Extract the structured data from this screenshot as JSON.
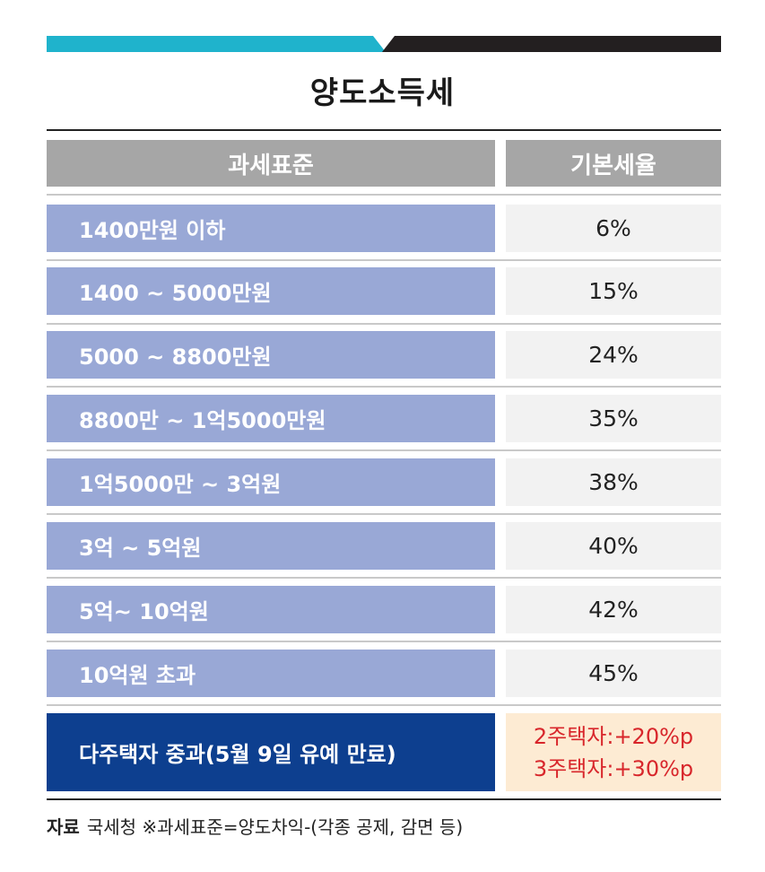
{
  "colors": {
    "accent_teal": "#1fb3cc",
    "accent_dark": "#231f20",
    "header_gray": "#a6a6a6",
    "row_blue": "#99a8d6",
    "special_navy": "#0d3f8f",
    "special_bg": "#fdebd3",
    "special_text": "#d8262b"
  },
  "title": "양도소득세",
  "table": {
    "headers": {
      "base": "과세표준",
      "rate": "기본세율"
    },
    "rows": [
      {
        "base": "1400만원 이하",
        "rate": "6%"
      },
      {
        "base": "1400 ~ 5000만원",
        "rate": "15%"
      },
      {
        "base": "5000 ~ 8800만원",
        "rate": "24%"
      },
      {
        "base": "8800만 ~ 1억5000만원",
        "rate": "35%"
      },
      {
        "base": "1억5000만 ~ 3억원",
        "rate": "38%"
      },
      {
        "base": "3억 ~ 5억원",
        "rate": "40%"
      },
      {
        "base": "5억~ 10억원",
        "rate": "42%"
      },
      {
        "base": "10억원 초과",
        "rate": "45%"
      }
    ],
    "special": {
      "label": "다주택자 중과(5월 9일 유예 만료)",
      "line1": "2주택자:+20%p",
      "line2": "3주택자:+30%p"
    }
  },
  "source": {
    "label": "자료",
    "text": "국세청 ※과세표준=양도차익-(각종 공제, 감면 등)"
  }
}
